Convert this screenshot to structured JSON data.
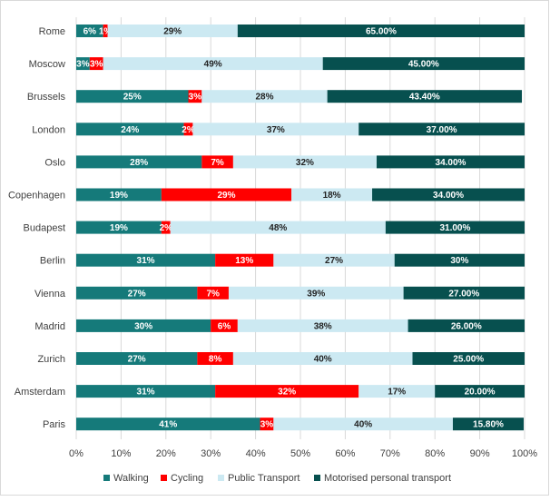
{
  "chart_data": {
    "type": "bar",
    "orientation": "horizontal",
    "stacked": true,
    "categories": [
      "Rome",
      "Moscow",
      "Brussels",
      "London",
      "Oslo",
      "Copenhagen",
      "Budapest",
      "Berlin",
      "Vienna",
      "Madrid",
      "Zurich",
      "Amsterdam",
      "Paris"
    ],
    "series": [
      {
        "name": "Walking",
        "color": "#157a7a",
        "label_color": "#ffffff",
        "values": [
          6,
          3,
          25,
          24,
          28,
          19,
          19,
          31,
          27,
          30,
          27,
          31,
          41
        ],
        "labels": [
          "6%",
          "3%",
          "25%",
          "24%",
          "28%",
          "19%",
          "19%",
          "31%",
          "27%",
          "30%",
          "27%",
          "31%",
          "41%"
        ]
      },
      {
        "name": "Cycling",
        "color": "#ff0000",
        "label_color": "#ffffff",
        "values": [
          1,
          3,
          3,
          2,
          7,
          29,
          2,
          13,
          7,
          6,
          8,
          32,
          3
        ],
        "labels": [
          "1%",
          "3%",
          "3%",
          "2%",
          "7%",
          "29%",
          "2%",
          "13%",
          "7%",
          "6%",
          "8%",
          "32%",
          "3%"
        ]
      },
      {
        "name": "Public Transport",
        "color": "#cce9f2",
        "label_color": "#222222",
        "values": [
          29,
          49,
          28,
          37,
          32,
          18,
          48,
          27,
          39,
          38,
          40,
          17,
          40
        ],
        "labels": [
          "29%",
          "49%",
          "28%",
          "37%",
          "32%",
          "18%",
          "48%",
          "27%",
          "39%",
          "38%",
          "40%",
          "17%",
          "40%"
        ]
      },
      {
        "name": "Motorised personal transport",
        "color": "#07504f",
        "label_color": "#ffffff",
        "values": [
          65,
          45,
          43.4,
          37,
          34,
          34,
          31,
          30,
          27,
          26,
          25,
          20,
          15.8
        ],
        "labels": [
          "65.00%",
          "45.00%",
          "43.40%",
          "37.00%",
          "34.00%",
          "34.00%",
          "31.00%",
          "30%",
          "27.00%",
          "26.00%",
          "25.00%",
          "20.00%",
          "15.80%"
        ]
      }
    ],
    "x_ticks": [
      "0%",
      "10%",
      "20%",
      "30%",
      "40%",
      "50%",
      "60%",
      "70%",
      "80%",
      "90%",
      "100%"
    ],
    "xlim": [
      0,
      100
    ],
    "title": "",
    "xlabel": "",
    "ylabel": "",
    "grid": true,
    "legend_position": "bottom"
  }
}
